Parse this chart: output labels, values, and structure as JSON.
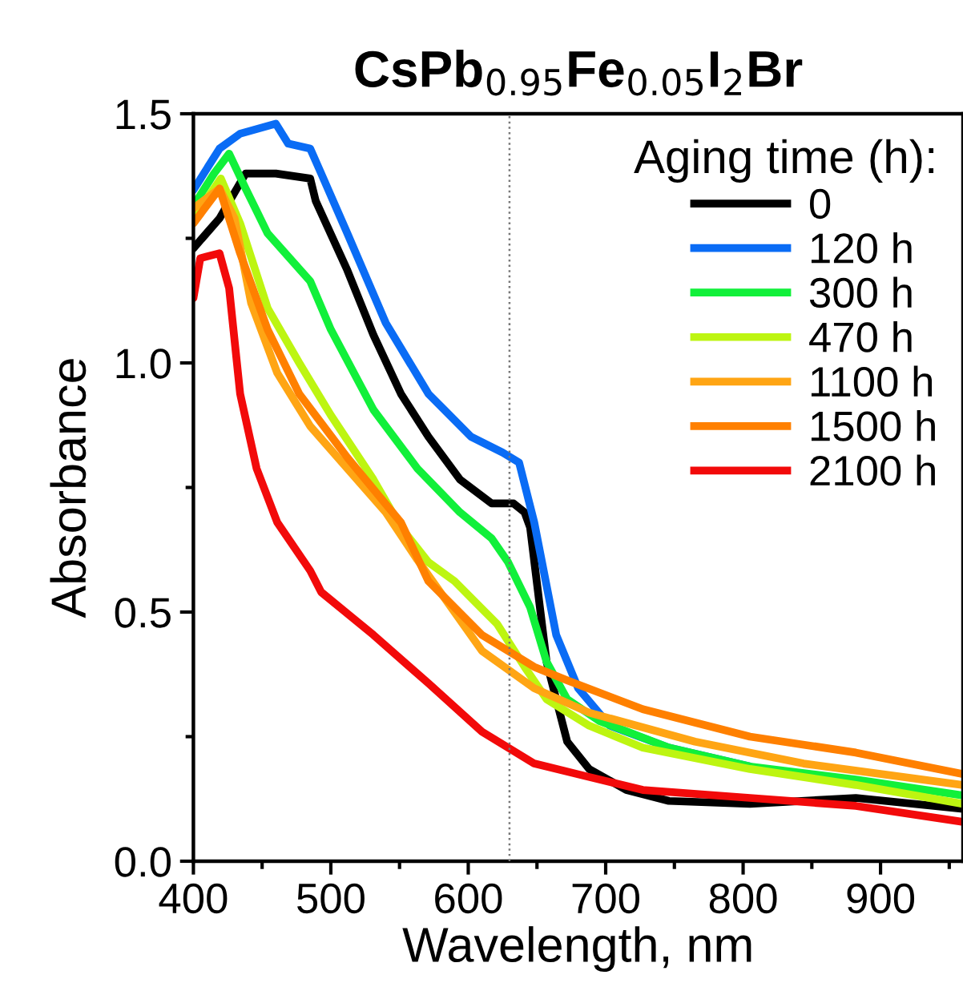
{
  "chart_data": {
    "type": "line",
    "title": "CsPb$_{0.95}$Fe$_{0.05}$I$_{2}$Br",
    "xlabel": "Wavelength, nm",
    "ylabel": "Absorbance",
    "legend_title": "Aging time (h):",
    "legend": "top right",
    "grid": false,
    "marker": "none",
    "line_style": "solid",
    "xlim": [
      400,
      960
    ],
    "ylim": [
      0,
      1.5
    ],
    "xticks": [
      400,
      {
        "value": 450,
        "label": null
      },
      500,
      {
        "value": 550,
        "label": null
      },
      600,
      {
        "value": 650,
        "label": null
      },
      700,
      {
        "value": 750,
        "label": null
      },
      800,
      {
        "value": 850,
        "label": null
      },
      900,
      {
        "value": 950,
        "label": null
      }
    ],
    "yticks": [
      {
        "value": 0,
        "label": "0.0"
      },
      {
        "value": 0.25,
        "label": null
      },
      0.5,
      {
        "value": 0.75,
        "label": null
      },
      {
        "value": 1,
        "label": "1.0"
      },
      {
        "value": 1.25,
        "label": null
      },
      1.5
    ],
    "ref_lines": [
      {
        "axis": "x",
        "value": 630,
        "color": "#777777",
        "line_style": "dotted"
      }
    ],
    "series": [
      {
        "name": "0",
        "color": "#000000",
        "x": [
          400,
          419,
          438,
          460,
          485,
          489,
          512,
          531,
          551,
          571,
          594,
          617,
          633,
          641,
          645,
          657,
          672,
          688,
          715,
          746,
          805,
          882,
          960
        ],
        "values": [
          1.23,
          1.29,
          1.38,
          1.38,
          1.37,
          1.325,
          1.186,
          1.056,
          0.938,
          0.852,
          0.766,
          0.718,
          0.718,
          0.7,
          0.67,
          0.4,
          0.24,
          0.185,
          0.143,
          0.121,
          0.115,
          0.127,
          0.105
        ]
      },
      {
        "name": "120 h",
        "color": "#0a6cf5",
        "x": [
          400,
          419,
          434,
          460,
          469,
          485,
          493,
          512,
          540,
          571,
          602,
          625,
          637,
          648,
          664,
          680,
          703,
          746,
          805
        ],
        "values": [
          1.347,
          1.43,
          1.46,
          1.48,
          1.44,
          1.43,
          1.38,
          1.26,
          1.08,
          0.938,
          0.852,
          0.82,
          0.8,
          0.68,
          0.454,
          0.347,
          0.272,
          0.228,
          0.19
        ]
      },
      {
        "name": "300 h",
        "color": "#11f03a",
        "x": [
          400,
          415,
          426,
          438,
          454,
          485,
          500,
          531,
          563,
          594,
          617,
          629,
          645,
          657,
          672,
          695,
          746,
          805,
          882,
          960
        ],
        "values": [
          1.315,
          1.38,
          1.42,
          1.35,
          1.26,
          1.164,
          1.067,
          0.906,
          0.788,
          0.7,
          0.648,
          0.6,
          0.51,
          0.4,
          0.325,
          0.282,
          0.228,
          0.19,
          0.164,
          0.132
        ]
      },
      {
        "name": "470 h",
        "color": "#bdf511",
        "x": [
          400,
          420,
          434,
          454,
          477,
          500,
          531,
          551,
          571,
          590,
          621,
          641,
          657,
          688,
          727,
          805,
          882,
          960
        ],
        "values": [
          1.29,
          1.37,
          1.28,
          1.11,
          1.0,
          0.895,
          0.766,
          0.67,
          0.6,
          0.562,
          0.476,
          0.39,
          0.325,
          0.272,
          0.228,
          0.185,
          0.153,
          0.115
        ]
      },
      {
        "name": "1100 h",
        "color": "#ffa514",
        "x": [
          400,
          419,
          430,
          442,
          461,
          485,
          512,
          540,
          563,
          610,
          648,
          688,
          765,
          844,
          960
        ],
        "values": [
          1.31,
          1.35,
          1.29,
          1.12,
          0.98,
          0.873,
          0.788,
          0.7,
          0.605,
          0.422,
          0.347,
          0.298,
          0.24,
          0.196,
          0.153
        ]
      },
      {
        "name": "1500 h",
        "color": "#ff8000",
        "x": [
          400,
          419,
          434,
          454,
          477,
          512,
          551,
          571,
          610,
          648,
          672,
          727,
          805,
          882,
          960
        ],
        "values": [
          1.28,
          1.35,
          1.22,
          1.067,
          0.938,
          0.81,
          0.68,
          0.562,
          0.454,
          0.39,
          0.363,
          0.305,
          0.25,
          0.218,
          0.175
        ]
      },
      {
        "name": "2100 h",
        "color": "#f20a0a",
        "x": [
          400,
          405,
          419,
          426,
          434,
          446,
          461,
          485,
          493,
          531,
          571,
          610,
          648,
          688,
          727,
          805,
          882,
          960
        ],
        "values": [
          1.13,
          1.21,
          1.22,
          1.15,
          0.938,
          0.788,
          0.68,
          0.583,
          0.54,
          0.454,
          0.357,
          0.26,
          0.196,
          0.169,
          0.143,
          0.127,
          0.111,
          0.079
        ]
      }
    ]
  }
}
